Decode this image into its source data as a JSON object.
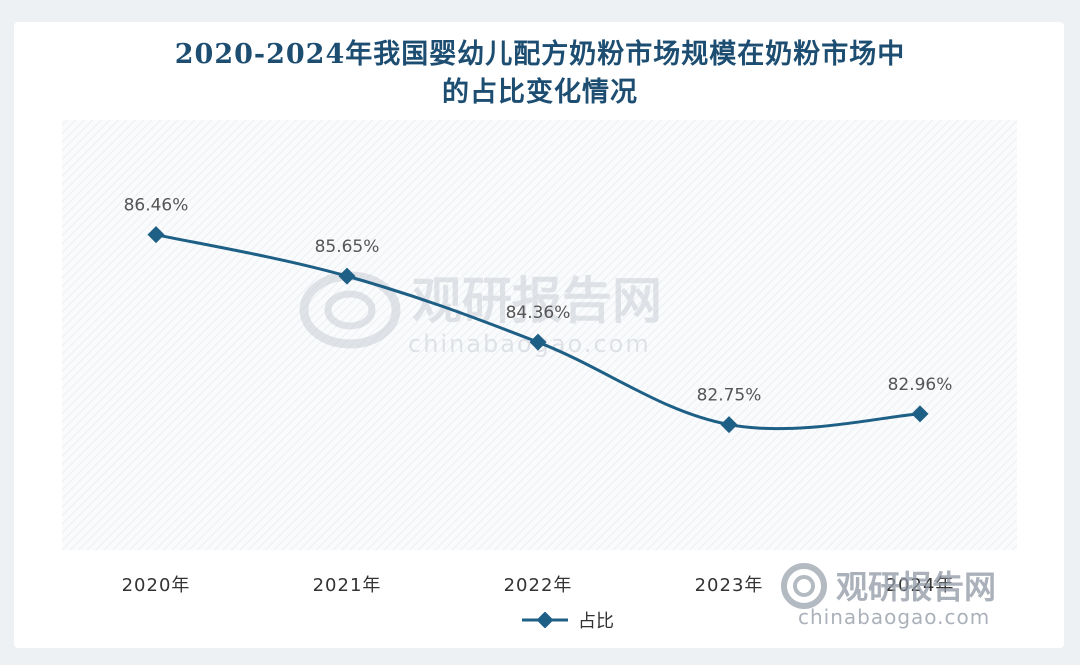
{
  "chart_data": {
    "type": "line",
    "title_line1": "2020-2024年我国婴幼儿配方奶粉市场规模在奶粉市场中",
    "title_line2": "的占比变化情况",
    "categories": [
      "2020年",
      "2021年",
      "2022年",
      "2023年",
      "2024年"
    ],
    "series": [
      {
        "name": "占比",
        "values": [
          86.46,
          85.65,
          84.36,
          82.75,
          82.96
        ],
        "labels": [
          "86.46%",
          "85.65%",
          "84.36%",
          "82.75%",
          "82.96%"
        ]
      }
    ],
    "ylim": [
      80.3,
      88.7
    ],
    "grid": false,
    "legend_position": "bottom",
    "series_color": "#1e5f86",
    "title_color": "#1d4e72"
  },
  "watermark": {
    "cn": "观研报告网",
    "en": "chinabaogao.com"
  }
}
